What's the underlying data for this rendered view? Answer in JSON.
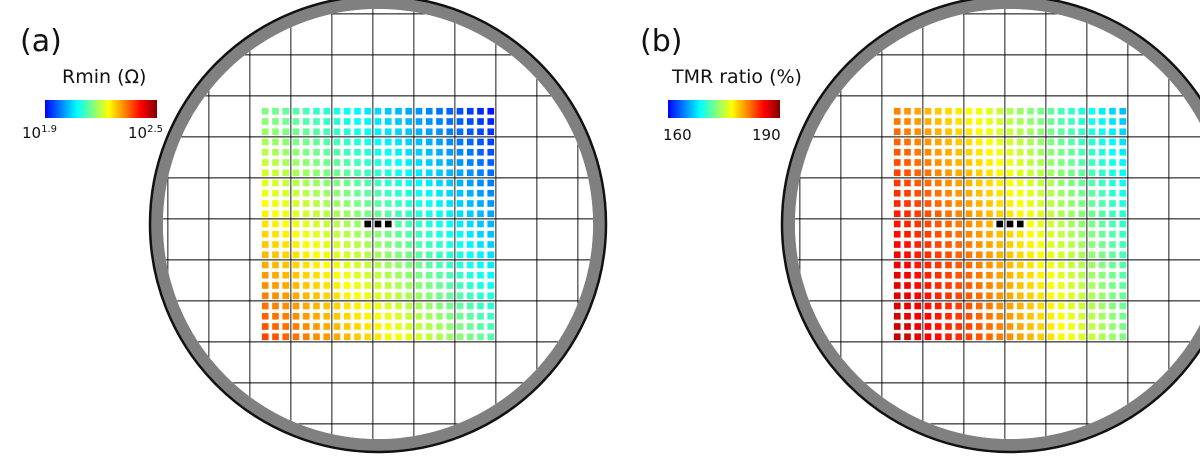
{
  "colors": {
    "jet": [
      "#0000ff",
      "#0080ff",
      "#00ffff",
      "#80ff80",
      "#ffff00",
      "#ff8000",
      "#ff0000",
      "#800000"
    ],
    "ring": "#808080",
    "outline": "#111111",
    "grid_line": "#000000",
    "boundary": "#3a3ad8",
    "bad_die": "#000000"
  },
  "panels": [
    {
      "letter": "(a)",
      "colorbar": {
        "title": "Rmin (Ω)",
        "min_base": "10",
        "min_exp": "1.9",
        "max_base": "10",
        "max_exp": "2.5"
      }
    },
    {
      "letter": "(b)",
      "colorbar": {
        "title": "TMR ratio (%)",
        "min_label": "160",
        "max_label": "190"
      }
    }
  ],
  "chart_data": [
    {
      "type": "heatmap",
      "description_kind": "wafer map",
      "title": "",
      "colorbar_label": "Rmin (Ω)",
      "scale": "log10",
      "color_range": [
        1.9,
        2.5
      ],
      "grid": true,
      "gradient": {
        "low_at": "upper-right",
        "high_at": "lower-left"
      },
      "bad_dies": [
        [
          -1,
          0
        ],
        [
          0,
          0
        ],
        [
          1,
          0
        ]
      ]
    },
    {
      "type": "heatmap",
      "description_kind": "wafer map",
      "title": "",
      "colorbar_label": "TMR ratio (%)",
      "color_range": [
        160,
        190
      ],
      "grid": true,
      "gradient": {
        "low_at": "right",
        "high_at": "lower-left"
      },
      "bad_dies": [
        [
          -1,
          0
        ],
        [
          0,
          0
        ],
        [
          1,
          0
        ]
      ]
    }
  ]
}
